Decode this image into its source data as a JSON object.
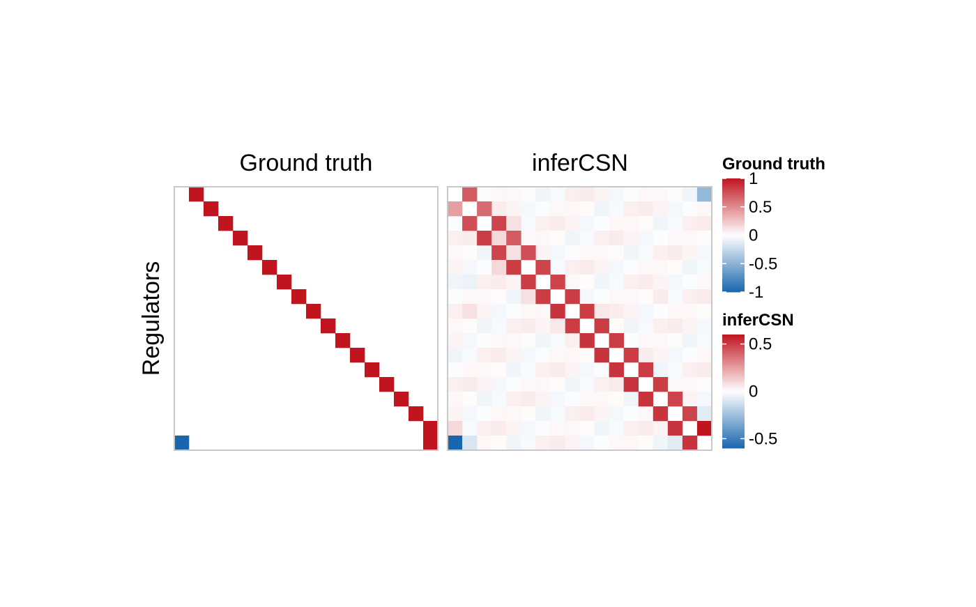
{
  "chart_data": {
    "type": "heatmap",
    "ylabel": "Regulators",
    "xlabel": "",
    "panels": [
      {
        "title": "Ground truth",
        "rows": 18,
        "cols": 18,
        "range": [
          -1,
          1
        ],
        "cells": [
          {
            "r": 0,
            "c": 1,
            "v": 1
          },
          {
            "r": 1,
            "c": 2,
            "v": 1
          },
          {
            "r": 2,
            "c": 3,
            "v": 1
          },
          {
            "r": 3,
            "c": 4,
            "v": 1
          },
          {
            "r": 4,
            "c": 5,
            "v": 1
          },
          {
            "r": 5,
            "c": 6,
            "v": 1
          },
          {
            "r": 6,
            "c": 7,
            "v": 1
          },
          {
            "r": 7,
            "c": 8,
            "v": 1
          },
          {
            "r": 8,
            "c": 9,
            "v": 1
          },
          {
            "r": 9,
            "c": 10,
            "v": 1
          },
          {
            "r": 10,
            "c": 11,
            "v": 1
          },
          {
            "r": 11,
            "c": 12,
            "v": 1
          },
          {
            "r": 12,
            "c": 13,
            "v": 1
          },
          {
            "r": 13,
            "c": 14,
            "v": 1
          },
          {
            "r": 14,
            "c": 15,
            "v": 1
          },
          {
            "r": 15,
            "c": 16,
            "v": 1
          },
          {
            "r": 16,
            "c": 17,
            "v": 1
          },
          {
            "r": 17,
            "c": 17,
            "v": 1
          },
          {
            "r": 17,
            "c": 0,
            "v": -1
          }
        ]
      },
      {
        "title": "inferCSN",
        "rows": 18,
        "cols": 18,
        "range": [
          -0.6,
          0.6
        ],
        "cells": [
          {
            "r": 0,
            "c": 1,
            "v": 0.42
          },
          {
            "r": 0,
            "c": 17,
            "v": -0.28
          },
          {
            "r": 1,
            "c": 0,
            "v": 0.25
          },
          {
            "r": 1,
            "c": 2,
            "v": 0.38
          },
          {
            "r": 2,
            "c": 1,
            "v": 0.45
          },
          {
            "r": 2,
            "c": 3,
            "v": 0.48
          },
          {
            "r": 2,
            "c": 4,
            "v": 0.08
          },
          {
            "r": 3,
            "c": 2,
            "v": 0.5
          },
          {
            "r": 3,
            "c": 3,
            "v": 0.1
          },
          {
            "r": 3,
            "c": 4,
            "v": 0.42
          },
          {
            "r": 4,
            "c": 3,
            "v": 0.48
          },
          {
            "r": 4,
            "c": 4,
            "v": 0.08
          },
          {
            "r": 4,
            "c": 5,
            "v": 0.45
          },
          {
            "r": 5,
            "c": 3,
            "v": 0.1
          },
          {
            "r": 5,
            "c": 4,
            "v": 0.5
          },
          {
            "r": 5,
            "c": 6,
            "v": 0.48
          },
          {
            "r": 6,
            "c": 5,
            "v": 0.5
          },
          {
            "r": 6,
            "c": 7,
            "v": 0.48
          },
          {
            "r": 6,
            "c": 1,
            "v": -0.05
          },
          {
            "r": 7,
            "c": 5,
            "v": 0.08
          },
          {
            "r": 7,
            "c": 6,
            "v": 0.5
          },
          {
            "r": 7,
            "c": 8,
            "v": 0.5
          },
          {
            "r": 7,
            "c": 14,
            "v": 0.05
          },
          {
            "r": 8,
            "c": 1,
            "v": 0.08
          },
          {
            "r": 8,
            "c": 7,
            "v": 0.52
          },
          {
            "r": 8,
            "c": 9,
            "v": 0.5
          },
          {
            "r": 8,
            "c": 10,
            "v": 0.06
          },
          {
            "r": 9,
            "c": 8,
            "v": 0.5
          },
          {
            "r": 9,
            "c": 10,
            "v": 0.5
          },
          {
            "r": 9,
            "c": 7,
            "v": 0.06
          },
          {
            "r": 10,
            "c": 9,
            "v": 0.52
          },
          {
            "r": 10,
            "c": 11,
            "v": 0.5
          },
          {
            "r": 11,
            "c": 10,
            "v": 0.52
          },
          {
            "r": 11,
            "c": 12,
            "v": 0.5
          },
          {
            "r": 12,
            "c": 11,
            "v": 0.52
          },
          {
            "r": 12,
            "c": 13,
            "v": 0.5
          },
          {
            "r": 13,
            "c": 12,
            "v": 0.52
          },
          {
            "r": 13,
            "c": 14,
            "v": 0.5
          },
          {
            "r": 14,
            "c": 13,
            "v": 0.52
          },
          {
            "r": 14,
            "c": 15,
            "v": 0.48
          },
          {
            "r": 15,
            "c": 14,
            "v": 0.52
          },
          {
            "r": 15,
            "c": 16,
            "v": 0.48
          },
          {
            "r": 15,
            "c": 17,
            "v": -0.08
          },
          {
            "r": 16,
            "c": 15,
            "v": 0.52
          },
          {
            "r": 16,
            "c": 17,
            "v": 0.62
          },
          {
            "r": 16,
            "c": 0,
            "v": 0.1
          },
          {
            "r": 17,
            "c": 0,
            "v": -0.6
          },
          {
            "r": 17,
            "c": 1,
            "v": -0.1
          },
          {
            "r": 17,
            "c": 15,
            "v": -0.08
          },
          {
            "r": 17,
            "c": 16,
            "v": 0.52
          }
        ],
        "noise": [
          0.03,
          -0.02,
          0.02,
          -0.03,
          0.04,
          0.01,
          -0.01,
          0.05,
          -0.04,
          0.02
        ]
      }
    ],
    "legends": [
      {
        "title": "Ground truth",
        "range": [
          -1,
          1
        ],
        "ticks": [
          1,
          0.5,
          0,
          -0.5,
          -1
        ],
        "tick_labels": [
          "1",
          "0.5",
          "0",
          "-0.5",
          "-1"
        ]
      },
      {
        "title": "inferCSN",
        "range": [
          -0.6,
          0.6
        ],
        "ticks": [
          0.5,
          0,
          -0.5
        ],
        "tick_labels": [
          "0.5",
          "0",
          "-0.5"
        ]
      }
    ],
    "colors": {
      "high": "#c0151f",
      "mid": "#ffffff",
      "low": "#1a66ae",
      "border": "#c8c8c8"
    }
  }
}
